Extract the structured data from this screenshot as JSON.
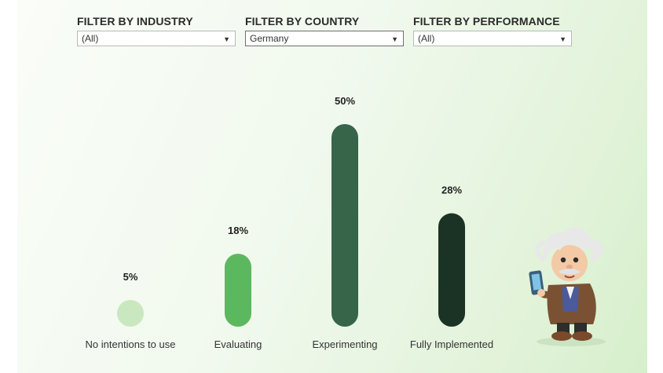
{
  "filters": [
    {
      "label": "FILTER BY INDUSTRY",
      "value": "(All)"
    },
    {
      "label": "FILTER BY COUNTRY",
      "value": "Germany"
    },
    {
      "label": "FILTER BY PERFORMANCE",
      "value": "(All)"
    }
  ],
  "colors": {
    "bars": [
      "#c9e8c0",
      "#5cb85f",
      "#37654a",
      "#1b3325"
    ]
  },
  "chart_data": {
    "type": "bar",
    "categories": [
      "No intentions to use",
      "Evaluating",
      "Experimenting",
      "Fully Implemented"
    ],
    "values": [
      5,
      18,
      50,
      28
    ],
    "data_labels": [
      "5%",
      "18%",
      "50%",
      "28%"
    ],
    "ylim": [
      0,
      50
    ],
    "grid": false
  }
}
